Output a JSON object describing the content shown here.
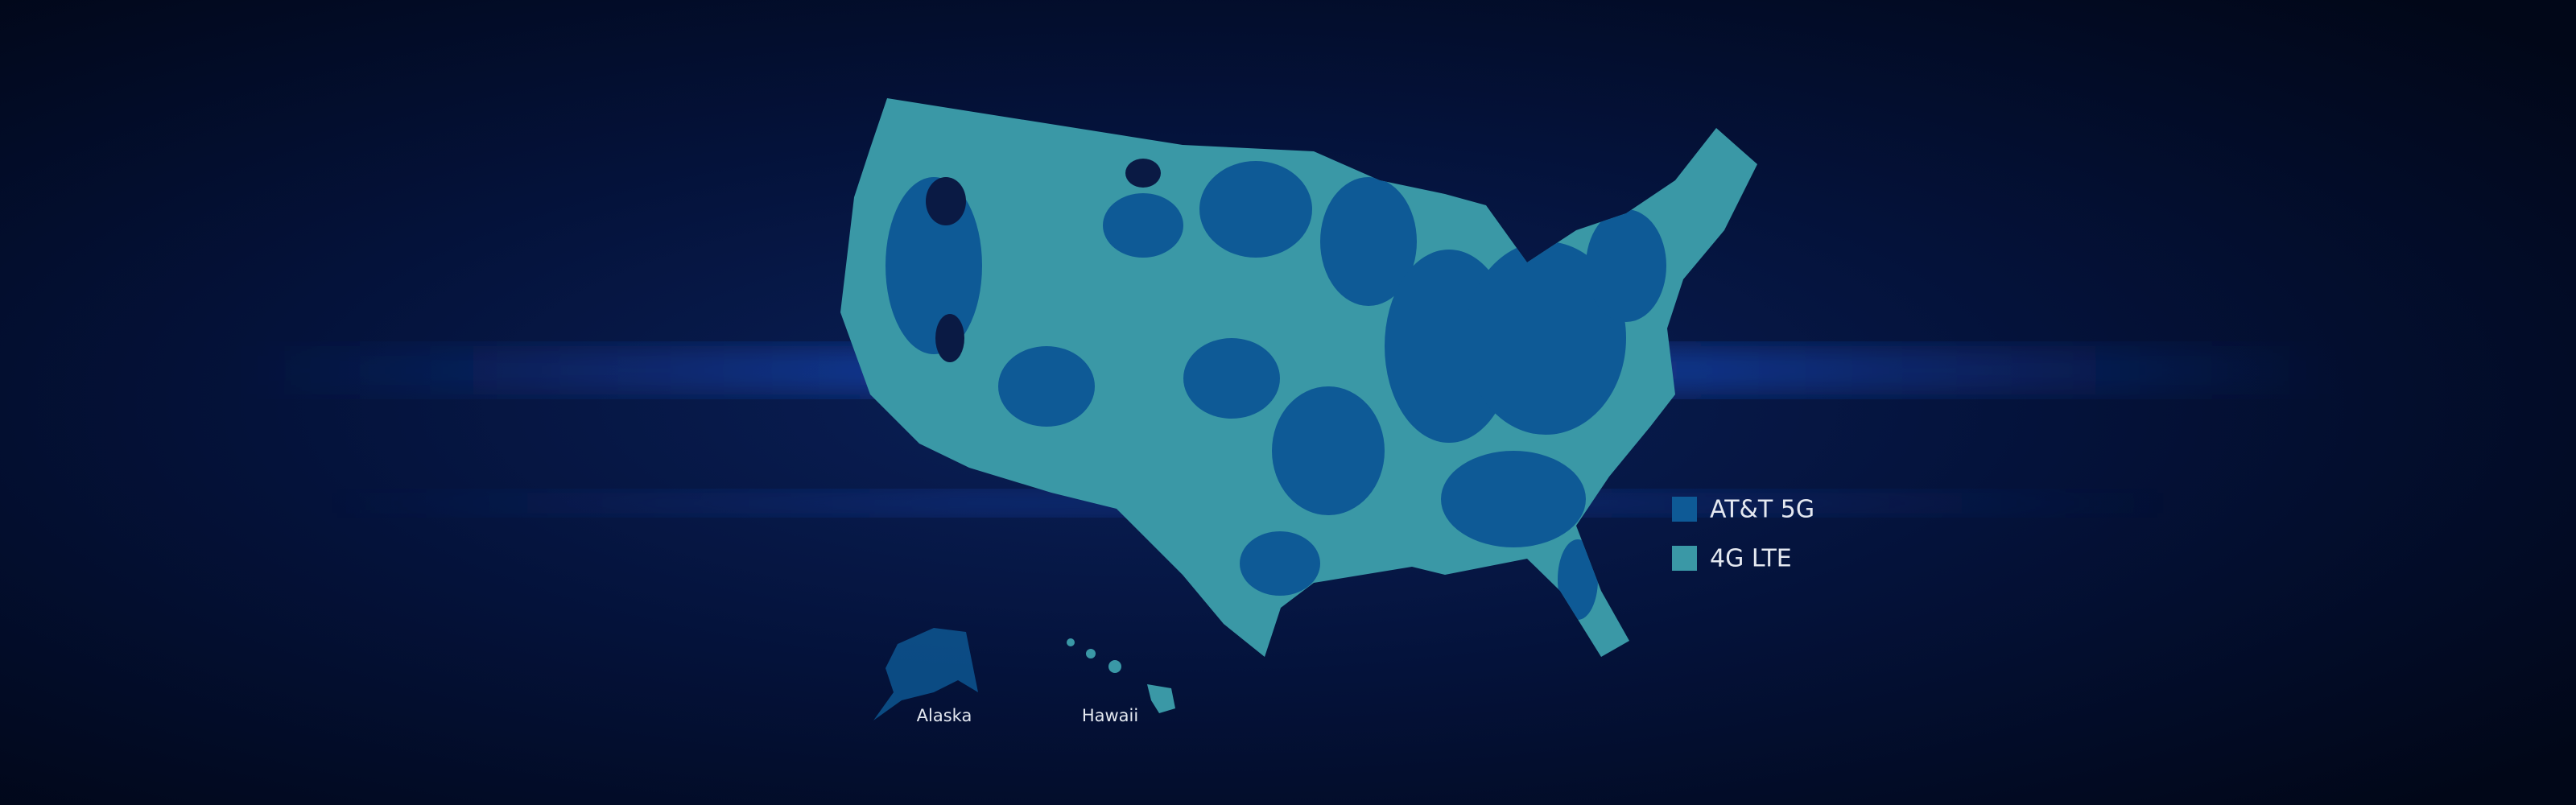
{
  "legend": [
    {
      "label": "AT&T 5G",
      "color": "#0e5a96"
    },
    {
      "label": "4G LTE",
      "color": "#3a98a6"
    }
  ],
  "insets": [
    "Alaska",
    "Hawaii"
  ]
}
